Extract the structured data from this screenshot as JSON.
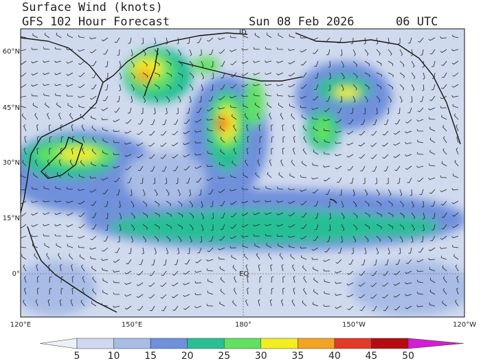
{
  "header": {
    "title": "Surface Wind (knots)",
    "subtitle": "GFS 102 Hour Forecast",
    "date": "Sun 08 Feb 2026",
    "time": "06 UTC"
  },
  "map": {
    "lat_labels": [
      "60°N",
      "45°N",
      "30°N",
      "15°N",
      "0°"
    ],
    "lon_labels": [
      "120°E",
      "150°E",
      "180°",
      "150°W",
      "120°W"
    ],
    "dateline_label": "ID",
    "equator_label": "EQ"
  },
  "colorbar": {
    "ticks": [
      5,
      10,
      15,
      20,
      25,
      30,
      35,
      40,
      45,
      50
    ],
    "colors": [
      "#eef0f8",
      "#d0daee",
      "#a8bce6",
      "#6f90dc",
      "#28bf95",
      "#62e062",
      "#f2ee22",
      "#f4a424",
      "#e23a2a",
      "#b40c12",
      "#d21ed2"
    ]
  }
}
